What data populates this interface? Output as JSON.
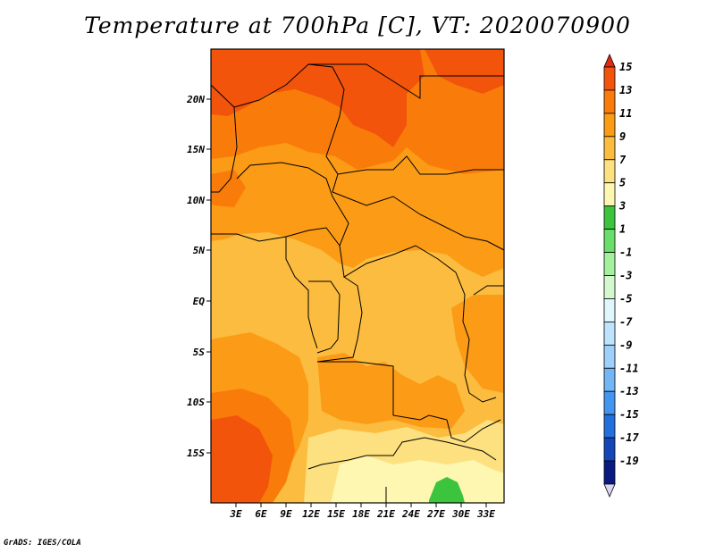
{
  "title": "Temperature at 700hPa [C], VT: 2020070900",
  "credit": "GrADS: IGES/COLA",
  "map": {
    "lat_labels": [
      "20N",
      "15N",
      "10N",
      "5N",
      "EQ",
      "5S",
      "10S",
      "15S"
    ],
    "lon_labels": [
      "3E",
      "6E",
      "9E",
      "12E",
      "15E",
      "18E",
      "21E",
      "24E",
      "27E",
      "30E",
      "33E"
    ]
  },
  "legend": {
    "levels": [
      "15",
      "13",
      "11",
      "9",
      "7",
      "5",
      "3",
      "1",
      "-1",
      "-3",
      "-5",
      "-7",
      "-9",
      "-11",
      "-13",
      "-15",
      "-17",
      "-19"
    ],
    "colors": [
      "#e4290f",
      "#f2540c",
      "#f97c0a",
      "#fb9b16",
      "#fbbc3f",
      "#fde07f",
      "#fdf7b2",
      "#3cc43e",
      "#6ade6a",
      "#a4f19d",
      "#d4f8ce",
      "#e1f5fd",
      "#bde4fc",
      "#9fd0fb",
      "#72b6f6",
      "#4296ef",
      "#2170dd",
      "#1347b9",
      "#0a1a80",
      "#dcd6f5"
    ]
  }
}
